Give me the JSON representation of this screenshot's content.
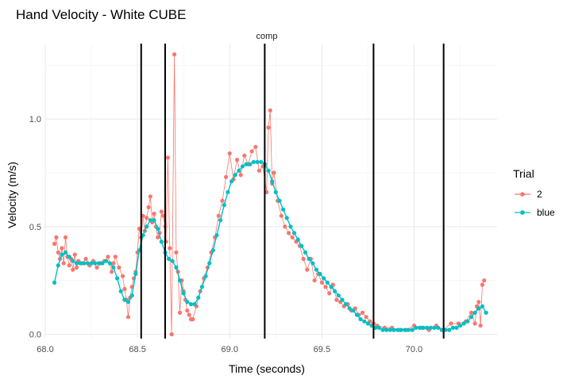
{
  "chart_data": {
    "type": "scatter",
    "title": "Hand Velocity - White CUBE",
    "facet_label": "comp",
    "xlabel": "Time (seconds)",
    "ylabel": "Velocity (m/s)",
    "xlim": [
      68.0,
      70.45
    ],
    "ylim": [
      -0.02,
      1.35
    ],
    "x_ticks": [
      68.0,
      68.5,
      69.0,
      69.5,
      70.0
    ],
    "x_tick_labels": [
      "68.0",
      "68.5",
      "69.0",
      "69.5",
      "70.0"
    ],
    "y_ticks": [
      0.0,
      0.5,
      1.0
    ],
    "y_tick_labels": [
      "0.0",
      "0.5",
      "1.0"
    ],
    "grid": true,
    "legend_position": "right",
    "legend_title": "Trial",
    "vlines": [
      68.52,
      68.65,
      69.19,
      69.78,
      70.16
    ],
    "series": [
      {
        "name": "2",
        "color": "#F8766D",
        "x": [
          68.05,
          68.06,
          68.07,
          68.08,
          68.09,
          68.1,
          68.11,
          68.12,
          68.13,
          68.14,
          68.15,
          68.16,
          68.17,
          68.18,
          68.2,
          68.22,
          68.24,
          68.26,
          68.28,
          68.3,
          68.32,
          68.34,
          68.36,
          68.37,
          68.38,
          68.4,
          68.42,
          68.43,
          68.44,
          68.45,
          68.46,
          68.47,
          68.48,
          68.49,
          68.5,
          68.51,
          68.52,
          68.53,
          68.54,
          68.55,
          68.56,
          68.57,
          68.58,
          68.59,
          68.6,
          68.61,
          68.62,
          68.63,
          68.64,
          68.65,
          68.655,
          68.665,
          68.675,
          68.685,
          68.7,
          68.71,
          68.72,
          68.73,
          68.74,
          68.75,
          68.76,
          68.77,
          68.78,
          68.79,
          68.8,
          68.82,
          68.84,
          68.86,
          68.88,
          68.9,
          68.92,
          68.94,
          68.96,
          68.98,
          69.0,
          69.02,
          69.04,
          69.06,
          69.08,
          69.1,
          69.12,
          69.14,
          69.16,
          69.18,
          69.2,
          69.21,
          69.22,
          69.23,
          69.24,
          69.26,
          69.28,
          69.3,
          69.32,
          69.34,
          69.36,
          69.38,
          69.4,
          69.42,
          69.44,
          69.46,
          69.48,
          69.5,
          69.52,
          69.54,
          69.56,
          69.58,
          69.6,
          69.62,
          69.64,
          69.66,
          69.68,
          69.7,
          69.72,
          69.74,
          69.76,
          69.78,
          69.8,
          69.84,
          69.88,
          69.92,
          69.96,
          70.0,
          70.04,
          70.08,
          70.12,
          70.16,
          70.2,
          70.24,
          70.28,
          70.31,
          70.33,
          70.34,
          70.35,
          70.36,
          70.37,
          70.38
        ],
        "y": [
          0.42,
          0.45,
          0.38,
          0.35,
          0.4,
          0.33,
          0.45,
          0.36,
          0.32,
          0.35,
          0.3,
          0.37,
          0.31,
          0.34,
          0.33,
          0.35,
          0.32,
          0.34,
          0.31,
          0.33,
          0.34,
          0.36,
          0.29,
          0.33,
          0.36,
          0.31,
          0.27,
          0.21,
          0.16,
          0.08,
          0.17,
          0.22,
          0.26,
          0.29,
          0.38,
          0.49,
          0.45,
          0.55,
          0.48,
          0.54,
          0.59,
          0.64,
          0.52,
          0.56,
          0.5,
          0.45,
          0.47,
          0.57,
          0.55,
          0.5,
          0.43,
          0.82,
          0.4,
          0.0,
          1.3,
          0.38,
          0.29,
          0.1,
          0.25,
          0.2,
          0.16,
          0.11,
          0.09,
          0.07,
          0.07,
          0.13,
          0.2,
          0.26,
          0.31,
          0.38,
          0.45,
          0.55,
          0.62,
          0.73,
          0.84,
          0.72,
          0.81,
          0.74,
          0.83,
          0.79,
          0.85,
          0.87,
          0.76,
          0.78,
          0.66,
          0.96,
          1.04,
          0.7,
          0.75,
          0.62,
          0.55,
          0.5,
          0.47,
          0.45,
          0.43,
          0.41,
          0.35,
          0.3,
          0.35,
          0.25,
          0.28,
          0.24,
          0.22,
          0.19,
          0.23,
          0.16,
          0.15,
          0.13,
          0.14,
          0.11,
          0.12,
          0.09,
          0.1,
          0.08,
          0.06,
          0.05,
          0.04,
          0.03,
          0.03,
          0.02,
          0.02,
          0.04,
          0.03,
          0.02,
          0.04,
          0.02,
          0.05,
          0.05,
          0.06,
          0.1,
          0.05,
          0.13,
          0.15,
          0.04,
          0.23,
          0.25
        ]
      },
      {
        "name": "blue",
        "color": "#00BFC4",
        "x": [
          68.05,
          68.07,
          68.09,
          68.11,
          68.13,
          68.15,
          68.17,
          68.19,
          68.21,
          68.23,
          68.25,
          68.27,
          68.29,
          68.31,
          68.33,
          68.35,
          68.37,
          68.39,
          68.41,
          68.43,
          68.45,
          68.47,
          68.49,
          68.51,
          68.53,
          68.55,
          68.57,
          68.59,
          68.61,
          68.63,
          68.65,
          68.67,
          68.69,
          68.71,
          68.73,
          68.75,
          68.77,
          68.79,
          68.81,
          68.83,
          68.85,
          68.87,
          68.89,
          68.91,
          68.93,
          68.95,
          68.97,
          68.99,
          69.01,
          69.03,
          69.05,
          69.07,
          69.09,
          69.11,
          69.13,
          69.15,
          69.17,
          69.19,
          69.21,
          69.23,
          69.25,
          69.27,
          69.29,
          69.31,
          69.33,
          69.35,
          69.37,
          69.39,
          69.41,
          69.43,
          69.45,
          69.47,
          69.49,
          69.51,
          69.53,
          69.55,
          69.57,
          69.59,
          69.61,
          69.63,
          69.65,
          69.67,
          69.69,
          69.71,
          69.73,
          69.75,
          69.77,
          69.79,
          69.81,
          69.83,
          69.85,
          69.87,
          69.89,
          69.91,
          69.93,
          69.95,
          69.97,
          69.99,
          70.01,
          70.03,
          70.05,
          70.07,
          70.09,
          70.11,
          70.13,
          70.15,
          70.17,
          70.19,
          70.21,
          70.23,
          70.25,
          70.27,
          70.29,
          70.31,
          70.33,
          70.35,
          70.37,
          70.39
        ],
        "y": [
          0.24,
          0.32,
          0.37,
          0.38,
          0.36,
          0.34,
          0.33,
          0.33,
          0.33,
          0.33,
          0.33,
          0.33,
          0.33,
          0.33,
          0.34,
          0.33,
          0.31,
          0.26,
          0.2,
          0.16,
          0.15,
          0.18,
          0.28,
          0.39,
          0.46,
          0.5,
          0.53,
          0.53,
          0.49,
          0.43,
          0.38,
          0.35,
          0.34,
          0.31,
          0.25,
          0.19,
          0.15,
          0.14,
          0.14,
          0.17,
          0.22,
          0.27,
          0.33,
          0.39,
          0.46,
          0.53,
          0.6,
          0.66,
          0.71,
          0.74,
          0.76,
          0.78,
          0.79,
          0.79,
          0.8,
          0.8,
          0.8,
          0.79,
          0.76,
          0.71,
          0.66,
          0.62,
          0.58,
          0.54,
          0.5,
          0.47,
          0.44,
          0.41,
          0.38,
          0.35,
          0.33,
          0.3,
          0.28,
          0.26,
          0.24,
          0.22,
          0.2,
          0.18,
          0.16,
          0.14,
          0.12,
          0.11,
          0.09,
          0.07,
          0.06,
          0.05,
          0.04,
          0.03,
          0.03,
          0.02,
          0.02,
          0.02,
          0.02,
          0.02,
          0.02,
          0.02,
          0.02,
          0.02,
          0.03,
          0.03,
          0.03,
          0.03,
          0.03,
          0.03,
          0.03,
          0.02,
          0.02,
          0.02,
          0.03,
          0.03,
          0.04,
          0.05,
          0.06,
          0.08,
          0.1,
          0.12,
          0.13,
          0.1
        ]
      }
    ]
  }
}
